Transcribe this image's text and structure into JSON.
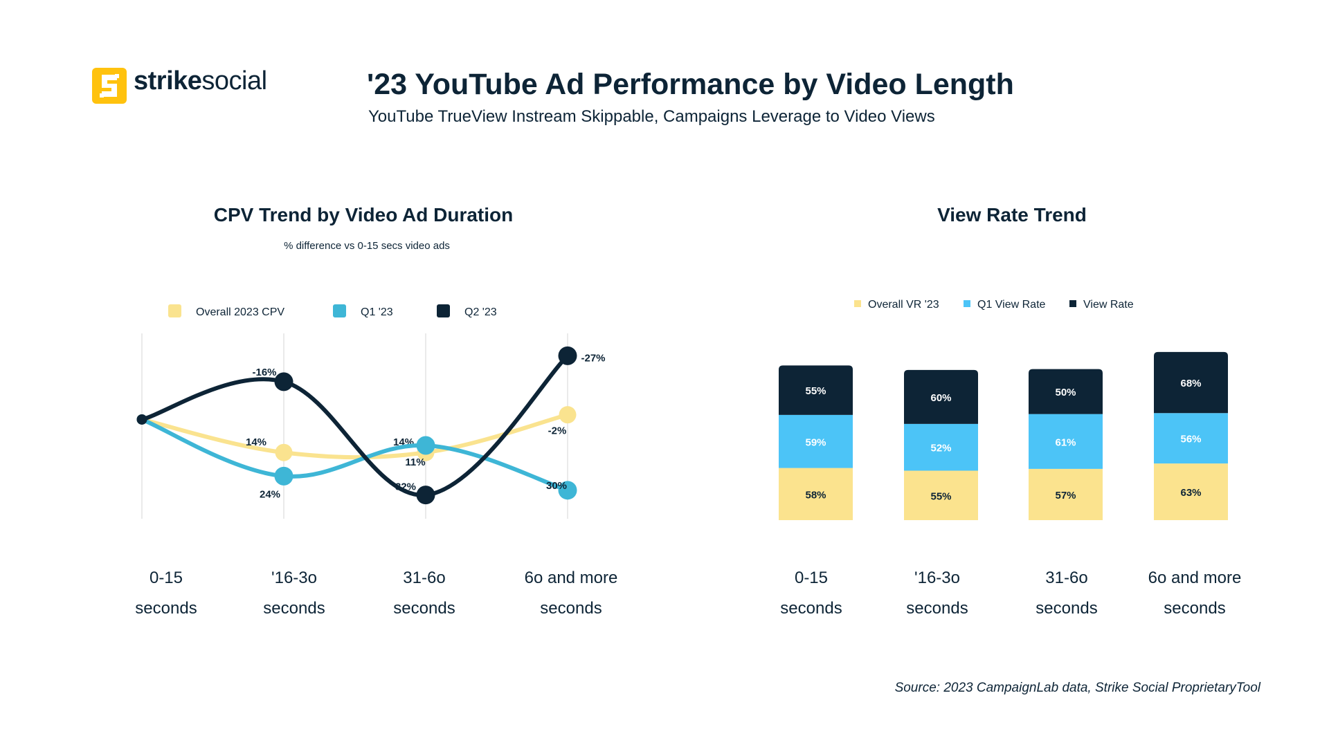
{
  "brand": {
    "name_bold": "strike",
    "name_light": "social",
    "logo_icon": "strike-social-s-logo",
    "color": "#ffc20e"
  },
  "header": {
    "title": "'23 YouTube Ad Performance by Video Length",
    "subtitle": "YouTube TrueView Instream Skippable, Campaigns Leverage to Video Views"
  },
  "source": "Source: 2023 CampaignLab data, Strike Social ProprietaryTool",
  "chart_data": [
    {
      "type": "line",
      "title": "CPV  Trend by Video Ad Duration",
      "subtitle": "% difference vs 0-15 secs video ads",
      "categories": [
        [
          "0-15",
          "seconds"
        ],
        [
          "'16-3o",
          "seconds"
        ],
        [
          "31-6o",
          "seconds"
        ],
        [
          "6o and more",
          "seconds"
        ]
      ],
      "legend_position": "top",
      "grid": "vertical",
      "y_direction": "inverted",
      "ylim": [
        -40,
        45
      ],
      "series": [
        {
          "name": "Overall 2023 CPV",
          "color": "#fae38f",
          "values": [
            0,
            14,
            14,
            -2
          ],
          "labels": [
            "",
            "14%",
            "14%",
            "-2%"
          ]
        },
        {
          "name": "Q1 '23",
          "color": "#3eb6d6",
          "values": [
            0,
            24,
            11,
            30
          ],
          "labels": [
            "",
            "24%",
            "11%",
            "30%"
          ]
        },
        {
          "name": "Q2 '23",
          "color": "#0d2436",
          "values": [
            0,
            -16,
            32,
            -27
          ],
          "labels": [
            "",
            "-16%",
            "32%",
            "-27%"
          ]
        }
      ]
    },
    {
      "type": "bar",
      "stacked": true,
      "title": "View Rate Trend",
      "categories": [
        [
          "0-15",
          "seconds"
        ],
        [
          "'16-3o",
          "seconds"
        ],
        [
          "31-6o",
          "seconds"
        ],
        [
          "6o and more",
          "seconds"
        ]
      ],
      "legend_position": "top",
      "series": [
        {
          "name": "Overall VR '23",
          "color": "#fbe38e",
          "values": [
            58,
            55,
            57,
            63
          ],
          "labels": [
            "58%",
            "55%",
            "57%",
            "63%"
          ]
        },
        {
          "name": "Q1 View Rate",
          "color": "#4cc4f7",
          "values": [
            59,
            52,
            61,
            56
          ],
          "labels": [
            "59%",
            "52%",
            "61%",
            "56%"
          ]
        },
        {
          "name": "View Rate",
          "color": "#0d2436",
          "values": [
            55,
            60,
            50,
            68
          ],
          "labels": [
            "55%",
            "60%",
            "50%",
            "68%"
          ]
        }
      ]
    }
  ]
}
